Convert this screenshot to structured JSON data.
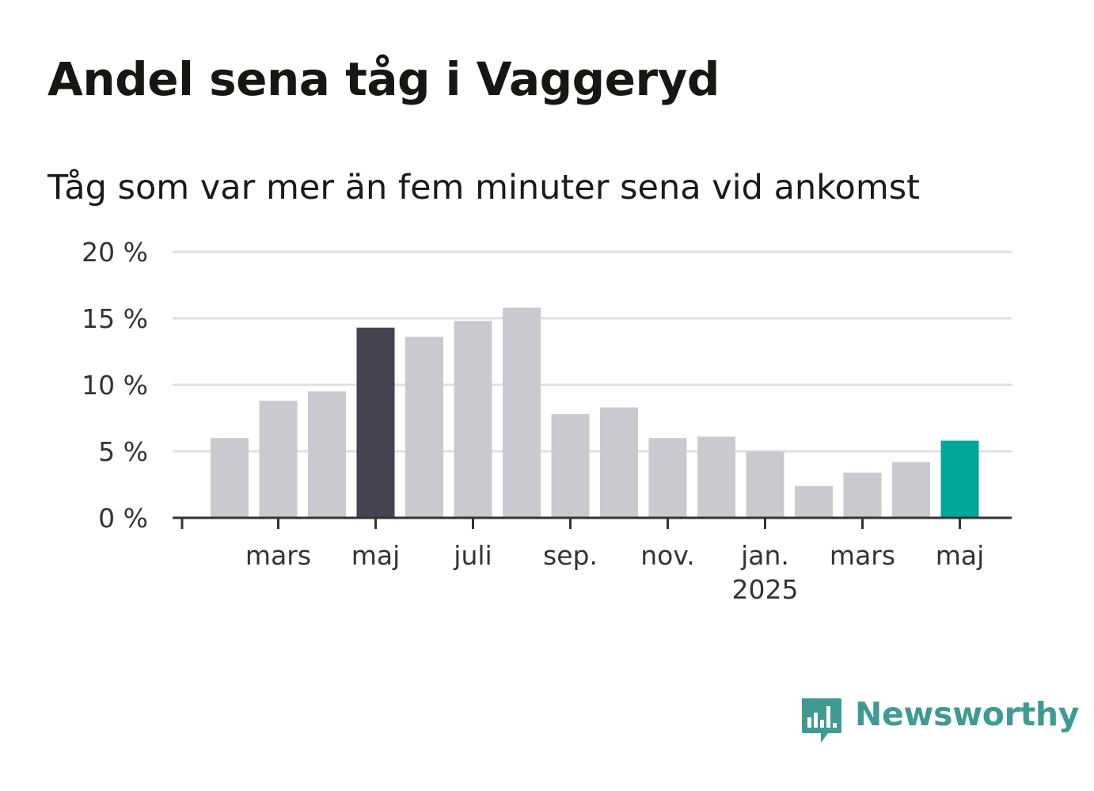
{
  "title": "Andel sena tåg i Vaggeryd",
  "subtitle": "Tåg som var mer än fem minuter sena vid ankomst",
  "brand": {
    "name": "Newsworthy",
    "color": "#3f9a93",
    "icon": "newsworthy-logo-icon"
  },
  "colors": {
    "default_bar": "#c9c9cf",
    "highlight_bar": "#44434f",
    "current_bar": "#00a699",
    "grid": "#e0e0e0",
    "axis": "#333333"
  },
  "chart_data": {
    "type": "bar",
    "x": [
      "2024-02",
      "2024-03",
      "2024-04",
      "2024-05",
      "2024-06",
      "2024-07",
      "2024-08",
      "2024-09",
      "2024-10",
      "2024-11",
      "2024-12",
      "2025-01",
      "2025-02",
      "2025-03",
      "2025-04",
      "2025-05"
    ],
    "values": [
      6.0,
      8.8,
      9.5,
      14.3,
      13.6,
      14.8,
      15.8,
      7.8,
      8.3,
      6.0,
      6.1,
      5.0,
      2.4,
      3.4,
      4.2,
      5.8
    ],
    "bar_styles": [
      "default",
      "default",
      "default",
      "highlight",
      "default",
      "default",
      "default",
      "default",
      "default",
      "default",
      "default",
      "default",
      "default",
      "default",
      "default",
      "current"
    ],
    "ylim": [
      0,
      20
    ],
    "yticks": [
      {
        "value": 0,
        "label": "0 %"
      },
      {
        "value": 5,
        "label": "5 %"
      },
      {
        "value": 10,
        "label": "10 %"
      },
      {
        "value": 15,
        "label": "15 %"
      },
      {
        "value": 20,
        "label": "20 %"
      }
    ],
    "xticks": [
      {
        "x": "2024-03",
        "label": "mars",
        "sublabel": ""
      },
      {
        "x": "2024-05",
        "label": "maj",
        "sublabel": ""
      },
      {
        "x": "2024-07",
        "label": "juli",
        "sublabel": ""
      },
      {
        "x": "2024-09",
        "label": "sep.",
        "sublabel": ""
      },
      {
        "x": "2024-11",
        "label": "nov.",
        "sublabel": ""
      },
      {
        "x": "2025-01",
        "label": "jan.",
        "sublabel": "2025"
      },
      {
        "x": "2025-03",
        "label": "mars",
        "sublabel": ""
      },
      {
        "x": "2025-05",
        "label": "maj",
        "sublabel": ""
      }
    ],
    "grid": true,
    "legend": "none"
  }
}
